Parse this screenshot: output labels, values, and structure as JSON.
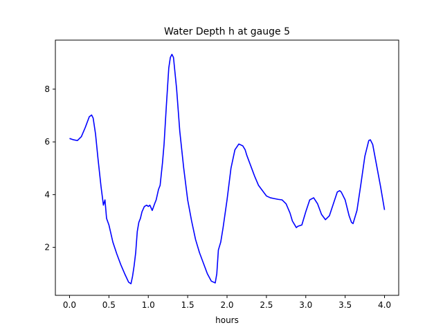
{
  "chart_data": {
    "type": "line",
    "title": "Water Depth h at gauge 5",
    "xlabel": "hours",
    "ylabel": "",
    "xlim": [
      -0.18,
      4.18
    ],
    "ylim": [
      0.18,
      9.86
    ],
    "xticks": [
      0.0,
      0.5,
      1.0,
      1.5,
      2.0,
      2.5,
      3.0,
      3.5,
      4.0
    ],
    "xtick_labels": [
      "0.0",
      "0.5",
      "1.0",
      "1.5",
      "2.0",
      "2.5",
      "3.0",
      "3.5",
      "4.0"
    ],
    "yticks": [
      2,
      4,
      6,
      8
    ],
    "ytick_labels": [
      "2",
      "4",
      "6",
      "8"
    ],
    "grid": false,
    "line_color": "#0000ff",
    "series": [
      {
        "x": [
          0.0,
          0.05,
          0.1,
          0.15,
          0.2,
          0.25,
          0.28,
          0.3,
          0.33,
          0.36,
          0.4,
          0.43,
          0.45,
          0.47,
          0.5,
          0.55,
          0.6,
          0.65,
          0.7,
          0.75,
          0.78,
          0.8,
          0.82,
          0.84,
          0.86,
          0.88,
          0.9,
          0.92,
          0.95,
          0.98,
          1.0,
          1.02,
          1.05,
          1.08,
          1.1,
          1.13,
          1.15,
          1.18,
          1.2,
          1.23,
          1.26,
          1.28,
          1.3,
          1.32,
          1.34,
          1.36,
          1.4,
          1.45,
          1.5,
          1.55,
          1.6,
          1.65,
          1.7,
          1.75,
          1.8,
          1.85,
          1.87,
          1.89,
          1.92,
          1.95,
          2.0,
          2.05,
          2.1,
          2.15,
          2.2,
          2.23,
          2.25,
          2.3,
          2.35,
          2.4,
          2.45,
          2.5,
          2.55,
          2.6,
          2.65,
          2.7,
          2.75,
          2.8,
          2.83,
          2.85,
          2.88,
          2.9,
          2.95,
          3.0,
          3.05,
          3.1,
          3.15,
          3.2,
          3.25,
          3.3,
          3.35,
          3.4,
          3.43,
          3.45,
          3.5,
          3.55,
          3.58,
          3.6,
          3.65,
          3.7,
          3.75,
          3.8,
          3.82,
          3.85,
          3.9,
          3.95,
          4.0
        ],
        "y": [
          6.13,
          6.08,
          6.05,
          6.2,
          6.55,
          6.95,
          7.02,
          6.9,
          6.3,
          5.4,
          4.3,
          3.6,
          3.8,
          3.1,
          2.85,
          2.2,
          1.75,
          1.35,
          1.0,
          0.68,
          0.62,
          0.9,
          1.3,
          1.8,
          2.6,
          2.95,
          3.1,
          3.35,
          3.55,
          3.6,
          3.55,
          3.6,
          3.4,
          3.65,
          3.8,
          4.2,
          4.35,
          5.2,
          5.9,
          7.4,
          8.8,
          9.2,
          9.32,
          9.2,
          8.6,
          8.0,
          6.4,
          5.0,
          3.8,
          3.0,
          2.3,
          1.8,
          1.4,
          1.0,
          0.72,
          0.65,
          1.0,
          1.9,
          2.2,
          2.75,
          3.8,
          5.0,
          5.7,
          5.92,
          5.85,
          5.7,
          5.5,
          5.1,
          4.7,
          4.35,
          4.15,
          3.95,
          3.88,
          3.85,
          3.82,
          3.8,
          3.65,
          3.3,
          3.0,
          2.9,
          2.75,
          2.8,
          2.85,
          3.35,
          3.8,
          3.88,
          3.65,
          3.25,
          3.05,
          3.2,
          3.65,
          4.1,
          4.15,
          4.1,
          3.8,
          3.2,
          2.95,
          2.9,
          3.4,
          4.4,
          5.45,
          6.05,
          6.08,
          5.9,
          5.1,
          4.3,
          3.42
        ]
      }
    ]
  }
}
